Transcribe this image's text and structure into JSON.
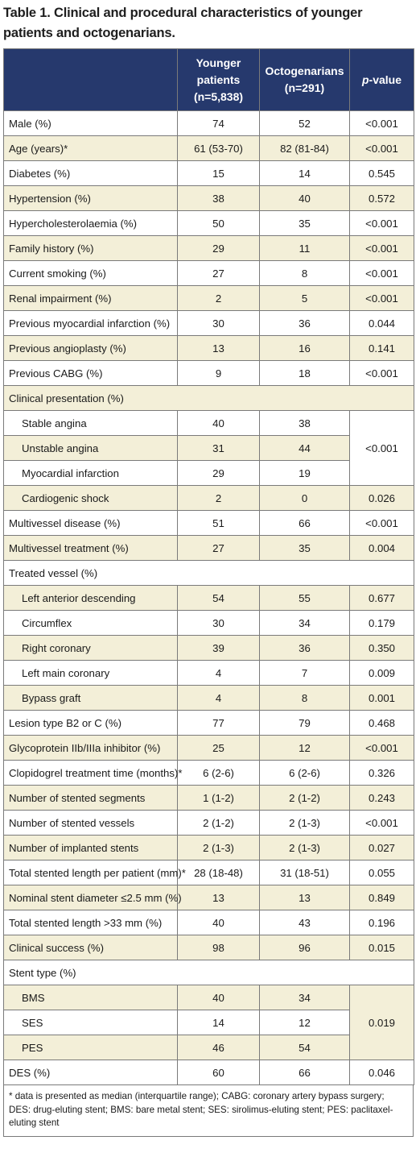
{
  "title": "Table 1. Clinical and procedural characteristics of younger patients and octogenarians.",
  "headers": {
    "col2": "Younger patients (n=5,838)",
    "col3": "Octogenarians (n=291)",
    "col4_italic": "p",
    "col4_rest": "-value"
  },
  "rows": [
    {
      "label": "Male (%)",
      "y": "74",
      "o": "52",
      "p": "<0.001"
    },
    {
      "label": "Age (years)*",
      "y": "61 (53-70)",
      "o": "82 (81-84)",
      "p": "<0.001"
    },
    {
      "label": "Diabetes (%)",
      "y": "15",
      "o": "14",
      "p": "0.545"
    },
    {
      "label": "Hypertension (%)",
      "y": "38",
      "o": "40",
      "p": "0.572"
    },
    {
      "label": "Hypercholesterolaemia (%)",
      "y": "50",
      "o": "35",
      "p": "<0.001"
    },
    {
      "label": "Family history (%)",
      "y": "29",
      "o": "11",
      "p": "<0.001"
    },
    {
      "label": "Current smoking (%)",
      "y": "27",
      "o": "8",
      "p": "<0.001"
    },
    {
      "label": "Renal impairment (%)",
      "y": "2",
      "o": "5",
      "p": "<0.001"
    },
    {
      "label": "Previous myocardial infarction (%)",
      "y": "30",
      "o": "36",
      "p": "0.044"
    },
    {
      "label": "Previous angioplasty (%)",
      "y": "13",
      "o": "16",
      "p": "0.141"
    },
    {
      "label": "Previous CABG (%)",
      "y": "9",
      "o": "18",
      "p": "<0.001"
    },
    {
      "label": "Clinical presentation (%)"
    },
    {
      "label": "Stable angina",
      "y": "40",
      "o": "38"
    },
    {
      "label": "Unstable angina",
      "y": "31",
      "o": "44"
    },
    {
      "label": "Myocardial infarction",
      "y": "29",
      "o": "19"
    },
    {
      "label": "Cardiogenic shock",
      "y": "2",
      "o": "0",
      "p": "0.026"
    },
    {
      "label": "Multivessel disease (%)",
      "y": "51",
      "o": "66",
      "p": "<0.001"
    },
    {
      "label": "Multivessel treatment (%)",
      "y": "27",
      "o": "35",
      "p": "0.004"
    },
    {
      "label": "Treated vessel (%)"
    },
    {
      "label": "Left anterior descending",
      "y": "54",
      "o": "55",
      "p": "0.677"
    },
    {
      "label": "Circumflex",
      "y": "30",
      "o": "34",
      "p": "0.179"
    },
    {
      "label": "Right coronary",
      "y": "39",
      "o": "36",
      "p": "0.350"
    },
    {
      "label": "Left main coronary",
      "y": "4",
      "o": "7",
      "p": "0.009"
    },
    {
      "label": "Bypass graft",
      "y": "4",
      "o": "8",
      "p": "0.001"
    },
    {
      "label": "Lesion type B2 or C (%)",
      "y": "77",
      "o": "79",
      "p": "0.468"
    },
    {
      "label": "Glycoprotein IIb/IIIa inhibitor (%)",
      "y": "25",
      "o": "12",
      "p": "<0.001"
    },
    {
      "label": "Clopidogrel treatment time (months)*",
      "y": "6 (2-6)",
      "o": "6 (2-6)",
      "p": "0.326"
    },
    {
      "label": "Number of stented segments",
      "y": "1 (1-2)",
      "o": "2 (1-2)",
      "p": "0.243"
    },
    {
      "label": "Number of stented vessels",
      "y": "2 (1-2)",
      "o": "2 (1-3)",
      "p": "<0.001"
    },
    {
      "label": "Number of implanted stents",
      "y": "2 (1-3)",
      "o": "2 (1-3)",
      "p": "0.027"
    },
    {
      "label": "Total stented length per patient (mm)*",
      "y": "28 (18-48)",
      "o": "31 (18-51)",
      "p": "0.055"
    },
    {
      "label": "Nominal stent diameter ≤2.5 mm (%)",
      "y": "13",
      "o": "13",
      "p": "0.849"
    },
    {
      "label": "Total stented length >33 mm (%)",
      "y": "40",
      "o": "43",
      "p": "0.196"
    },
    {
      "label": "Clinical success (%)",
      "y": "98",
      "o": "96",
      "p": "0.015"
    },
    {
      "label": "Stent type (%)"
    },
    {
      "label": "BMS",
      "y": "40",
      "o": "34"
    },
    {
      "label": "SES",
      "y": "14",
      "o": "12"
    },
    {
      "label": "PES",
      "y": "46",
      "o": "54"
    },
    {
      "label": "DES (%)",
      "y": "60",
      "o": "66",
      "p": "0.046"
    }
  ],
  "merged_p": {
    "clinical_presentation": "<0.001",
    "stent_type": "0.019"
  },
  "footnote": "* data is presented as median (interquartile range); CABG: coronary artery bypass surgery; DES: drug-eluting stent; BMS: bare metal stent; SES: sirolimus-eluting stent; PES: paclitaxel-eluting stent"
}
